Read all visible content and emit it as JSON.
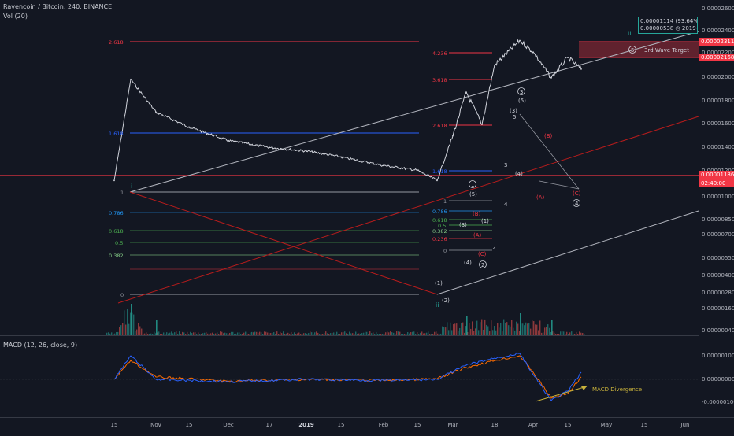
{
  "header": {
    "symbol": "Ravencoin / Bitcoin, 240, BINANCE",
    "volume_indicator": "Vol (20)",
    "macd_indicator": "MACD (12, 26, close, 9)"
  },
  "info_box": {
    "line1": "0.00001114 (93.64%)",
    "line2": "0.00000538 ◷ 2019-06-"
  },
  "price_axis": {
    "labels": [
      "0.00002600",
      "0.00002400",
      "0.00002200",
      "0.00002000",
      "0.00001800",
      "0.00001600",
      "0.00001400",
      "0.00001200",
      "0.00001000",
      "0.00000850",
      "0.00000700",
      "0.00000550",
      "0.00000400",
      "0.00000280",
      "0.00000160",
      "0.00000040"
    ],
    "tag_upper": "0.00002311",
    "tag_lower": "0.00002168",
    "tag_current": "0.00001186",
    "tag_countdown": "02:40:00"
  },
  "macd_axis": {
    "labels": [
      "0.00000100",
      "0.00000000",
      "-0.00000100"
    ]
  },
  "time_axis": {
    "labels": [
      "15",
      "Nov",
      "15",
      "Dec",
      "17",
      "2019",
      "15",
      "Feb",
      "15",
      "Mar",
      "18",
      "Apr",
      "15",
      "May",
      "15",
      "Jun"
    ]
  },
  "colors": {
    "background": "#131722",
    "candles": "#d1d4dc",
    "fib_red": "#f23645",
    "fib_blue": "#2962ff",
    "fib_green": "#4caf50",
    "channel_white": "#b2b5be",
    "macd_line": "#2962ff",
    "signal_line": "#ff6d00",
    "divergence": "#c8b23c"
  },
  "annotations": {
    "target_wave": "5",
    "target_label": "3rd Wave Target",
    "divergence_label": "MACD Divergence",
    "wave_i": "i",
    "wave_ii": "ii",
    "wave_iii": "iii",
    "big_fib_top": "2.618",
    "big_fib_mid": "1.618",
    "big_fib_one": "1",
    "big_fib_0786": "0.786",
    "big_fib_0618": "0.618",
    "big_fib_05": "0.5",
    "big_fib_0382": "0.382",
    "big_fib_zero": "0",
    "small_fib_4236": "4.236",
    "small_fib_3618": "3.618",
    "small_fib_2618": "2.618",
    "small_fib_1618": "1.618",
    "small_fib_1": "1",
    "small_fib_0786": "0.786",
    "small_fib_0618": "0.618",
    "small_fib_05": "0.5",
    "small_fib_0382": "0.382",
    "small_fib_0236": "0.236",
    "small_fib_0": "0",
    "w1p": "(1)",
    "w2p": "(2)",
    "w1c": "1",
    "w2c": "2",
    "w3c": "3",
    "w4c": "4",
    "w5p_small": "(5)",
    "w3p_small": "(3)",
    "w4p_small": "(4)",
    "w1p_small": "(1)",
    "wB": "(B)",
    "wA": "(A)",
    "wC": "(C)",
    "w3p_top": "(3)",
    "w5p_top": "(5)",
    "w4p_mid": "(4)",
    "w5_tiny": "5",
    "w3_tiny": "3",
    "w4_tiny": "4",
    "w2_tiny": "2",
    "wB_big": "(B)",
    "wA_big": "(A)",
    "wC_big": "(C)"
  },
  "chart_data": {
    "type": "line",
    "title": "Ravencoin / Bitcoin, 240, BINANCE",
    "xlabel": "",
    "ylabel": "",
    "y_scale": "log",
    "ylim": [
      4e-07,
      2.6e-05
    ],
    "grid": false,
    "series": [
      {
        "name": "RVN/BTC",
        "x": [
          "Oct 15",
          "Oct 22",
          "Nov 1",
          "Nov 15",
          "Dec 1",
          "Dec 17",
          "Jan 1",
          "Jan 15",
          "Feb 1",
          "Feb 15",
          "Feb 25",
          "Mar 1",
          "Mar 5",
          "Mar 10",
          "Mar 18",
          "Mar 25",
          "Apr 1",
          "Apr 8",
          "Apr 15",
          "Apr 20"
        ],
        "values": [
          2.8e-06,
          1.04e-05,
          6.8e-06,
          5.6e-06,
          4.7e-06,
          4.3e-06,
          4.1e-06,
          3.8e-06,
          3.4e-06,
          3.2e-06,
          2.8e-06,
          5e-06,
          8.8e-06,
          5.8e-06,
          1.25e-05,
          1.72e-05,
          1.48e-05,
          1.06e-05,
          1.38e-05,
          1.186e-05
        ]
      }
    ],
    "volume": {
      "x": [
        "Oct 22",
        "Nov 1",
        "Mar 5",
        "Mar 25",
        "Apr 8"
      ],
      "values": [
        1,
        0.5,
        0.6,
        0.7,
        0.5
      ]
    },
    "macd": {
      "ylim": [
        -1e-06,
        1e-06
      ],
      "x": [
        "Oct 15",
        "Oct 22",
        "Nov 1",
        "Dec 1",
        "Jan 1",
        "Feb 1",
        "Feb 25",
        "Mar 5",
        "Mar 18",
        "Mar 25",
        "Apr 1",
        "Apr 8",
        "Apr 15",
        "Apr 20"
      ],
      "macd": [
        0.0,
        1e-06,
        0.0,
        -1e-07,
        0.0,
        -5e-08,
        0.0,
        6e-07,
        9e-07,
        1.1e-06,
        2e-07,
        -9e-07,
        -5e-07,
        3e-07
      ],
      "signal": [
        0.0,
        8e-07,
        1e-07,
        -8e-08,
        0.0,
        -4e-08,
        2e-08,
        5e-07,
        8e-07,
        1e-06,
        3e-07,
        -8e-07,
        -6e-07,
        1e-07
      ]
    }
  }
}
